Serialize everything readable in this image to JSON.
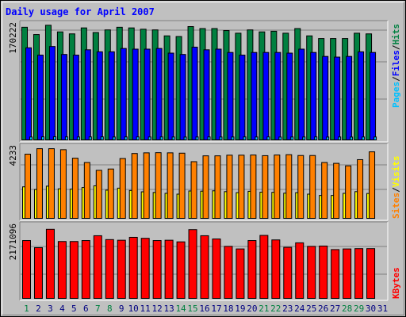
{
  "title": "Daily usage for April 2007",
  "colors": {
    "background": "#c0c0c0",
    "hits": "#008040",
    "files": "#0000ff",
    "pages": "#00c0ff",
    "visits": "#ffff00",
    "sites": "#ff8000",
    "kbytes": "#ff0000",
    "weekend_day": "#008040",
    "weekday": "#000080"
  },
  "chart_data": [
    {
      "type": "bar",
      "panel": "hits-files-pages",
      "max_label": "170222",
      "ylim": [
        0,
        178000
      ],
      "legend": {
        "a": "Pages",
        "b": "Files",
        "c": "Hits",
        "sep": "/"
      },
      "categories": [
        1,
        2,
        3,
        4,
        5,
        6,
        7,
        8,
        9,
        10,
        11,
        12,
        13,
        14,
        15,
        16,
        17,
        18,
        19,
        20,
        21,
        22,
        23,
        24,
        25,
        26,
        27,
        28,
        29,
        30,
        31
      ],
      "series": [
        {
          "name": "Hits",
          "values": [
            171000,
            160000,
            174000,
            164000,
            161000,
            170000,
            163000,
            167000,
            171000,
            170000,
            168000,
            167000,
            158000,
            157000,
            172000,
            169000,
            169000,
            166000,
            162000,
            167000,
            164000,
            165000,
            162000,
            169000,
            158000,
            154000,
            154000,
            154000,
            162000,
            161000,
            0
          ]
        },
        {
          "name": "Files",
          "values": [
            140000,
            129000,
            142000,
            130000,
            129000,
            137000,
            134000,
            134000,
            139000,
            138000,
            138000,
            139000,
            132000,
            130000,
            141000,
            137000,
            138000,
            133000,
            129000,
            133000,
            133000,
            133000,
            132000,
            138000,
            133000,
            127000,
            126000,
            127000,
            134000,
            133000,
            0
          ]
        },
        {
          "name": "Pages",
          "values": [
            5600,
            5800,
            5900,
            5700,
            5600,
            5700,
            5800,
            5600,
            5700,
            5700,
            5600,
            5700,
            5600,
            5500,
            5600,
            5700,
            5600,
            5600,
            5700,
            5600,
            5700,
            5500,
            5600,
            5600,
            5700,
            5500,
            5600,
            5500,
            5600,
            5600,
            0
          ]
        }
      ]
    },
    {
      "type": "bar",
      "panel": "visits-sites",
      "max_label": "4233",
      "ylim": [
        0,
        4330
      ],
      "legend": {
        "a": "Sites",
        "b": "Visits",
        "sep": "/"
      },
      "categories": [
        1,
        2,
        3,
        4,
        5,
        6,
        7,
        8,
        9,
        10,
        11,
        12,
        13,
        14,
        15,
        16,
        17,
        18,
        19,
        20,
        21,
        22,
        23,
        24,
        25,
        26,
        27,
        28,
        29,
        30,
        31
      ],
      "series": [
        {
          "name": "Visits",
          "values": [
            1940,
            1780,
            1980,
            1820,
            1800,
            1900,
            2000,
            1740,
            1860,
            1720,
            1640,
            1600,
            1550,
            1500,
            1690,
            1680,
            1700,
            1650,
            1590,
            1670,
            1620,
            1610,
            1560,
            1590,
            1500,
            1420,
            1420,
            1550,
            1650,
            1540,
            0
          ]
        },
        {
          "name": "Sites",
          "values": [
            3900,
            4230,
            4230,
            4170,
            3660,
            3400,
            2930,
            3010,
            3640,
            3940,
            3980,
            3990,
            3980,
            3960,
            3450,
            3800,
            3800,
            3840,
            3840,
            3850,
            3810,
            3850,
            3870,
            3820,
            3820,
            3400,
            3350,
            3200,
            3570,
            4040,
            0
          ]
        }
      ]
    },
    {
      "type": "bar",
      "panel": "kbytes",
      "max_label": "2171096",
      "ylim": [
        0,
        2190000
      ],
      "legend": {
        "a": "KBytes"
      },
      "categories": [
        1,
        2,
        3,
        4,
        5,
        6,
        7,
        8,
        9,
        10,
        11,
        12,
        13,
        14,
        15,
        16,
        17,
        18,
        19,
        20,
        21,
        22,
        23,
        24,
        25,
        26,
        27,
        28,
        29,
        30,
        31
      ],
      "series": [
        {
          "name": "KBytes",
          "values": [
            1820000,
            1600000,
            2170000,
            1790000,
            1790000,
            1820000,
            1970000,
            1850000,
            1830000,
            1920000,
            1890000,
            1820000,
            1830000,
            1780000,
            2160000,
            1970000,
            1870000,
            1640000,
            1560000,
            1820000,
            1980000,
            1840000,
            1610000,
            1750000,
            1640000,
            1650000,
            1540000,
            1560000,
            1570000,
            1570000,
            0
          ]
        }
      ]
    }
  ],
  "days": [
    "1",
    "2",
    "3",
    "4",
    "5",
    "6",
    "7",
    "8",
    "9",
    "10",
    "11",
    "12",
    "13",
    "14",
    "15",
    "16",
    "17",
    "18",
    "19",
    "20",
    "21",
    "22",
    "23",
    "24",
    "25",
    "26",
    "27",
    "28",
    "29",
    "30",
    "31"
  ],
  "weekend_days": [
    1,
    7,
    8,
    14,
    15,
    21,
    22,
    28,
    29
  ]
}
